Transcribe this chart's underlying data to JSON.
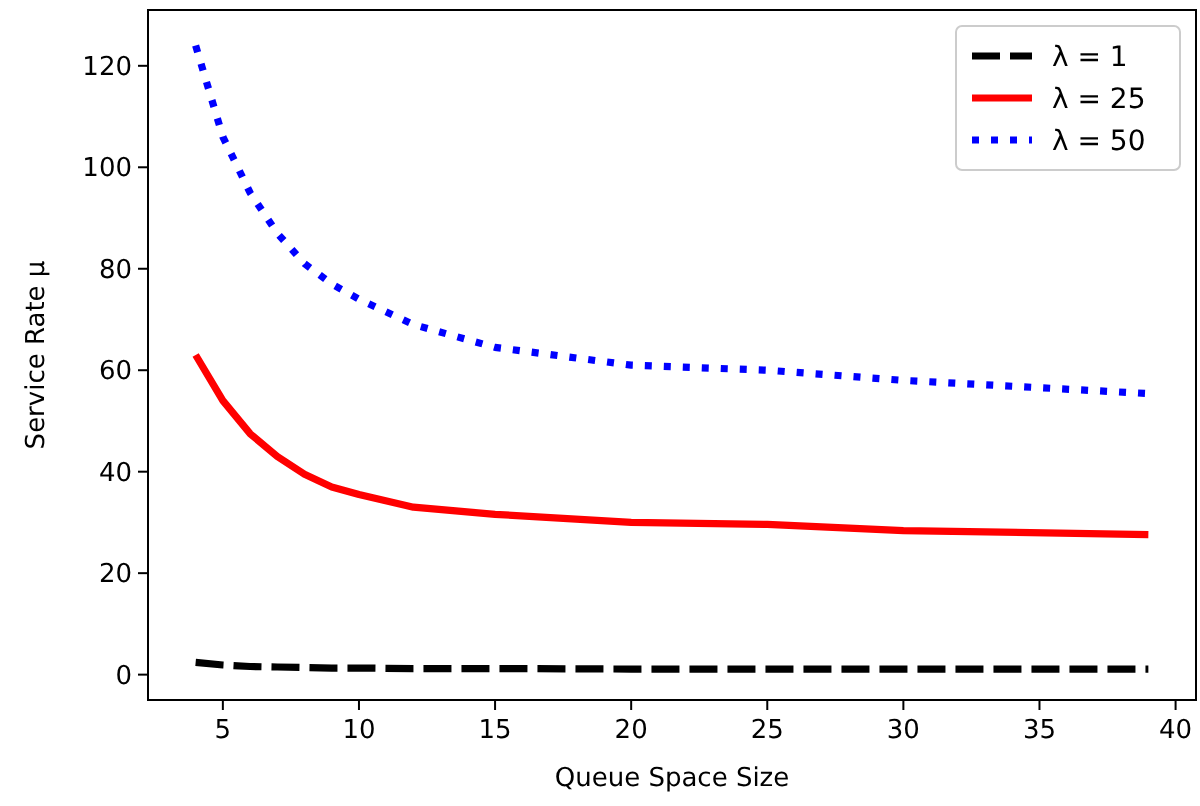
{
  "chart_data": {
    "type": "line",
    "xlabel": "Queue Space Size",
    "ylabel": "Service Rate μ",
    "x": [
      4,
      5,
      6,
      7,
      8,
      9,
      10,
      12,
      15,
      20,
      25,
      30,
      39
    ],
    "xlim": [
      2.25,
      40.75
    ],
    "xticks": [
      5,
      10,
      15,
      20,
      25,
      30,
      35,
      40
    ],
    "ylim": [
      -5,
      131
    ],
    "yticks": [
      0,
      20,
      40,
      60,
      80,
      100,
      120
    ],
    "grid": false,
    "legend": "top right",
    "marker": "none",
    "series": [
      {
        "name": "λ = 1",
        "color": "#000000",
        "line_style": "dashed",
        "values": [
          2.4,
          1.9,
          1.6,
          1.5,
          1.4,
          1.3,
          1.3,
          1.2,
          1.2,
          1.1,
          1.1,
          1.1,
          1.1
        ]
      },
      {
        "name": "λ = 25",
        "color": "#ff0000",
        "line_style": "solid",
        "values": [
          63,
          54,
          47.5,
          43,
          39.5,
          37,
          35.5,
          33,
          31.6,
          30,
          29.6,
          28.4,
          27.6
        ]
      },
      {
        "name": "λ = 50",
        "color": "#0000ff",
        "line_style": "dotted",
        "values": [
          124,
          106,
          95,
          87,
          81,
          77,
          74,
          69,
          64.5,
          61,
          60,
          58,
          55.4
        ]
      }
    ]
  }
}
